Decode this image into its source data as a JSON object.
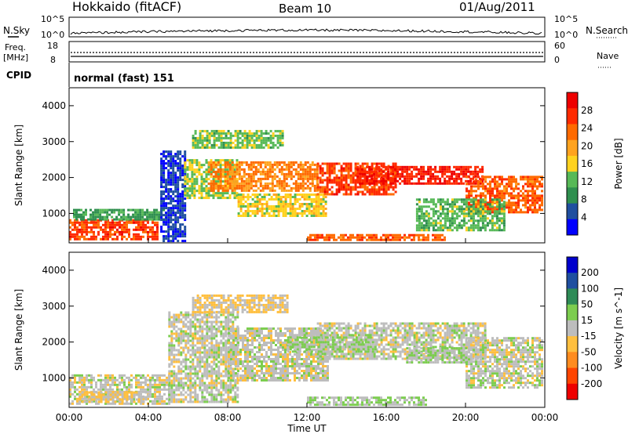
{
  "header": {
    "radar": "Hokkaido (fitACF)",
    "beam": "Beam 10",
    "date": "01/Aug/2011"
  },
  "top_panels": {
    "nsky_label": "N.Sky",
    "nsearch_label": "N.Search",
    "nsky_ticks": [
      "10^5",
      "10^0"
    ],
    "nsearch_ticks": [
      "10^5",
      "10^0"
    ],
    "freq_label": "Freq.",
    "freq_unit": "[MHz]",
    "freq_ticks": [
      "18",
      "8"
    ],
    "nave_label": "Nave",
    "nave_ticks": [
      "60",
      "0"
    ],
    "cpid_label": "CPID",
    "cpid_value": "normal (fast) 151"
  },
  "colors": {
    "power_scale": [
      "#0000ff",
      "#1f4f9f",
      "#2f8f4f",
      "#57b957",
      "#ffd21f",
      "#ffa31f",
      "#ff6a00",
      "#ff2a00",
      "#ee0000"
    ],
    "velocity_scale": [
      "#ee0000",
      "#ff4500",
      "#ff8c1f",
      "#ffbf3f",
      "#bdbdbd",
      "#7ccd4f",
      "#2e8b57",
      "#1f4fa0",
      "#0000cd"
    ],
    "background": "#ffffff"
  },
  "chart_data": [
    {
      "type": "heatmap",
      "title": "",
      "xlabel": "Time UT",
      "ylabel": "Slant Range [km]",
      "x_ticks": [
        "00:00",
        "04:00",
        "08:00",
        "12:00",
        "16:00",
        "20:00",
        "00:00"
      ],
      "y_ticks": [
        "1000",
        "2000",
        "3000",
        "4000"
      ],
      "xlim_hours": [
        0,
        24
      ],
      "ylim_km": [
        180,
        4500
      ],
      "colorbar_label": "Power [dB]",
      "colorbar_ticks": [
        "4",
        "8",
        "12",
        "16",
        "20",
        "24",
        "28"
      ],
      "colorbar_range": [
        0,
        32
      ],
      "regions": [
        {
          "t0": 0.0,
          "t1": 4.5,
          "r0": 250,
          "r1": 800,
          "level": 26
        },
        {
          "t0": 0.2,
          "t1": 4.8,
          "r0": 800,
          "r1": 1100,
          "level": 10
        },
        {
          "t0": 4.6,
          "t1": 5.8,
          "r0": 200,
          "r1": 2700,
          "level": 4
        },
        {
          "t0": 5.8,
          "t1": 8.5,
          "r0": 1400,
          "r1": 2500,
          "level": 14
        },
        {
          "t0": 6.2,
          "t1": 10.8,
          "r0": 2800,
          "r1": 3300,
          "level": 13
        },
        {
          "t0": 7.0,
          "t1": 12.5,
          "r0": 1600,
          "r1": 2400,
          "level": 22
        },
        {
          "t0": 8.5,
          "t1": 13.0,
          "r0": 900,
          "r1": 1500,
          "level": 16
        },
        {
          "t0": 12.5,
          "t1": 16.5,
          "r0": 1500,
          "r1": 2400,
          "level": 26
        },
        {
          "t0": 14.5,
          "t1": 20.8,
          "r0": 1800,
          "r1": 2300,
          "level": 28
        },
        {
          "t0": 20.0,
          "t1": 24.0,
          "r0": 1000,
          "r1": 2000,
          "level": 24
        },
        {
          "t0": 12.0,
          "t1": 19.0,
          "r0": 230,
          "r1": 420,
          "level": 24
        },
        {
          "t0": 17.5,
          "t1": 22.0,
          "r0": 500,
          "r1": 1400,
          "level": 12
        }
      ]
    },
    {
      "type": "heatmap",
      "title": "",
      "xlabel": "Time UT",
      "ylabel": "Slant Range [km]",
      "x_ticks": [
        "00:00",
        "04:00",
        "08:00",
        "12:00",
        "16:00",
        "20:00",
        "00:00"
      ],
      "y_ticks": [
        "1000",
        "2000",
        "3000",
        "4000"
      ],
      "xlim_hours": [
        0,
        24
      ],
      "ylim_km": [
        180,
        4500
      ],
      "colorbar_label": "Velocity [m s^-1]",
      "colorbar_ticks": [
        "200",
        "100",
        "50",
        "15",
        "-15",
        "-50",
        "-100",
        "-200"
      ],
      "colorbar_range": [
        -250,
        250
      ],
      "regions": [
        {
          "t0": 0.0,
          "t1": 5.0,
          "r0": 250,
          "r1": 1100,
          "level": 0
        },
        {
          "t0": 5.0,
          "t1": 8.5,
          "r0": 300,
          "r1": 2800,
          "level": 0
        },
        {
          "t0": 6.2,
          "t1": 11.0,
          "r0": 2800,
          "r1": 3300,
          "level": -30
        },
        {
          "t0": 8.0,
          "t1": 13.0,
          "r0": 900,
          "r1": 2400,
          "level": 0
        },
        {
          "t0": 12.5,
          "t1": 21.0,
          "r0": 1500,
          "r1": 2500,
          "level": 0
        },
        {
          "t0": 20.0,
          "t1": 24.0,
          "r0": 700,
          "r1": 2100,
          "level": 0
        },
        {
          "t0": 11.0,
          "t1": 15.5,
          "r0": 1700,
          "r1": 2200,
          "level": 30
        },
        {
          "t0": 17.0,
          "t1": 20.0,
          "r0": 1400,
          "r1": 1800,
          "level": 30
        },
        {
          "t0": 0.5,
          "t1": 4.0,
          "r0": 300,
          "r1": 600,
          "level": -30
        },
        {
          "t0": 12.0,
          "t1": 18.0,
          "r0": 220,
          "r1": 420,
          "level": 30
        }
      ]
    }
  ]
}
